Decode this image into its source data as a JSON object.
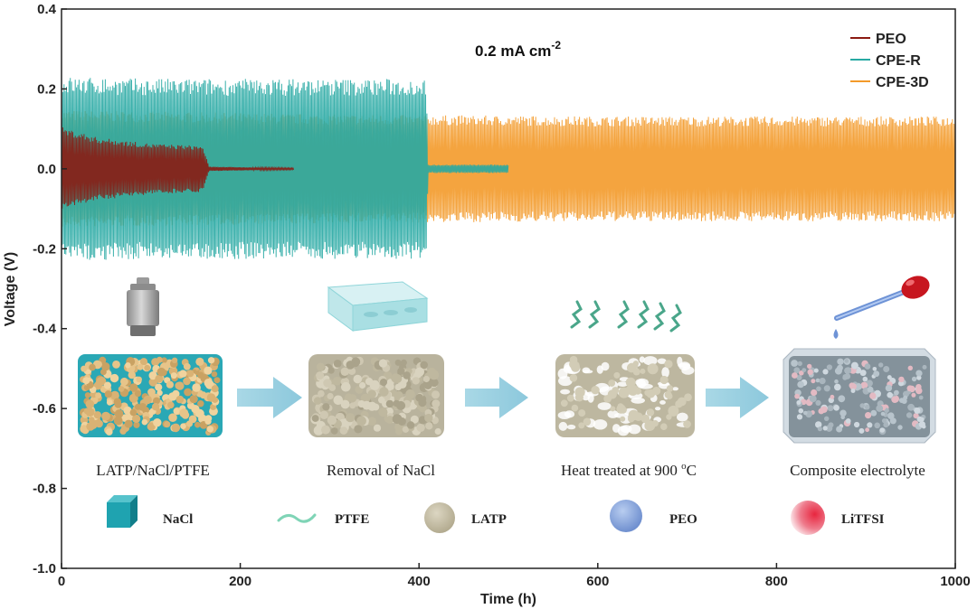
{
  "chart_data": {
    "type": "line",
    "title": "",
    "annotation": "0.2 mA cm",
    "annotation_superscript": "-2",
    "xlabel": "Time (h)",
    "ylabel": "Voltage (V)",
    "xlim": [
      0,
      1000
    ],
    "ylim": [
      -1.0,
      0.4
    ],
    "xticks": [
      0,
      200,
      400,
      600,
      800,
      1000
    ],
    "yticks": [
      0.4,
      0.2,
      0.0,
      -0.2,
      -0.4,
      -0.6,
      -0.8,
      -1.0
    ],
    "xtick_labels": [
      "0",
      "200",
      "400",
      "600",
      "800",
      "1000"
    ],
    "ytick_labels": [
      "0.4",
      "0.2",
      "0.0",
      "-0.2",
      "-0.4",
      "-0.6",
      "-0.8",
      "-1.0"
    ],
    "legend_position": "top-right",
    "series": [
      {
        "name": "PEO",
        "color": "#8b1a12",
        "envelope": [
          {
            "t": 0,
            "amp": 0.1
          },
          {
            "t": 40,
            "amp": 0.075
          },
          {
            "t": 100,
            "amp": 0.06
          },
          {
            "t": 158,
            "amp": 0.055
          },
          {
            "t": 165,
            "amp": 0.005
          },
          {
            "t": 260,
            "amp": 0.002
          }
        ]
      },
      {
        "name": "CPE-R",
        "color": "#27a9a3",
        "envelope": [
          {
            "t": 0,
            "amp": 0.22
          },
          {
            "t": 100,
            "amp": 0.215
          },
          {
            "t": 300,
            "amp": 0.215
          },
          {
            "t": 408,
            "amp": 0.215
          },
          {
            "t": 410,
            "amp": 0.01
          },
          {
            "t": 500,
            "amp": 0.01
          }
        ]
      },
      {
        "name": "CPE-3D",
        "color": "#f39a2a",
        "envelope": [
          {
            "t": 0,
            "amp": 0.14
          },
          {
            "t": 300,
            "amp": 0.13
          },
          {
            "t": 600,
            "amp": 0.125
          },
          {
            "t": 1000,
            "amp": 0.125
          }
        ]
      }
    ]
  },
  "inset": {
    "steps": [
      {
        "caption": "LATP/NaCl/PTFE"
      },
      {
        "caption": "Removal of NaCl"
      },
      {
        "caption": "Heat treated at 900 ",
        "superscript": "o",
        "caption_suffix": "C"
      },
      {
        "caption": "Composite electrolyte"
      }
    ],
    "materials": [
      {
        "label": "NaCl",
        "color": "#1fa3b0"
      },
      {
        "label": "PTFE",
        "color": "#7fd4b6"
      },
      {
        "label": "LATP",
        "color": "#c9c0a5"
      },
      {
        "label": "PEO",
        "color": "#7f9fd9"
      },
      {
        "label": "LiTFSI",
        "color": "#e8425a"
      }
    ]
  }
}
